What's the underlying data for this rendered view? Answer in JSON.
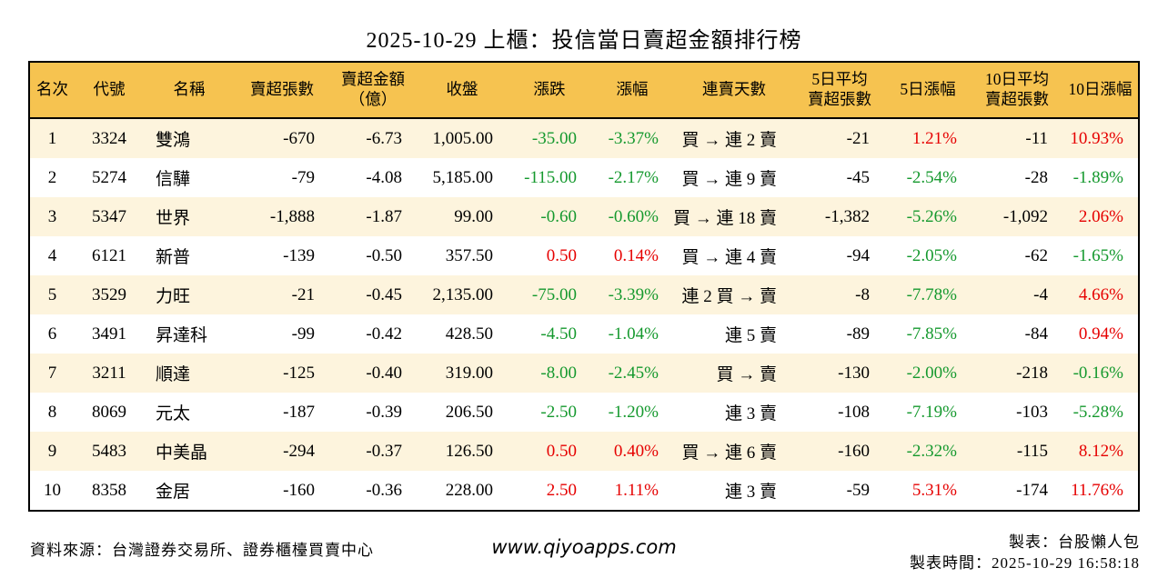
{
  "title": "2025-10-29 上櫃：投信當日賣超金額排行榜",
  "colors": {
    "up_red": "#e60000",
    "down_green": "#15992e",
    "header_bg": "#f6c350",
    "row_alt_bg": "#fdf4dd",
    "border": "#000000"
  },
  "chart_data": {
    "type": "table",
    "title": "2025-10-29 上櫃：投信當日賣超金額排行榜",
    "columns": [
      "名次",
      "代號",
      "名稱",
      "賣超張數",
      "賣超金額（億）",
      "收盤",
      "漲跌",
      "漲幅",
      "連賣天數",
      "5日平均賣超張數",
      "5日漲幅",
      "10日平均賣超張數",
      "10日漲幅"
    ],
    "column_headers_display": [
      "名次",
      "代號",
      "名稱",
      "賣超張數",
      "賣超金額\n（億）",
      "收盤",
      "漲跌",
      "漲幅",
      "連賣天數",
      "5日平均\n賣超張數",
      "5日漲幅",
      "10日平均\n賣超張數",
      "10日漲幅"
    ],
    "column_keys": [
      "rank",
      "code",
      "name",
      "net-sell-volume",
      "net-sell-amount",
      "close",
      "change",
      "change-pct",
      "streak",
      "avg5-volume",
      "pct5",
      "avg10-volume",
      "pct10"
    ],
    "sign_colored_columns": [
      6,
      7,
      10,
      12
    ],
    "color_convention": {
      "positive": "red",
      "negative": "green"
    },
    "rows": [
      [
        "1",
        "3324",
        "雙鴻",
        "-670",
        "-6.73",
        "1,005.00",
        "-35.00",
        "-3.37%",
        "買 → 連 2 賣",
        "-21",
        "1.21%",
        "-11",
        "10.93%"
      ],
      [
        "2",
        "5274",
        "信驊",
        "-79",
        "-4.08",
        "5,185.00",
        "-115.00",
        "-2.17%",
        "買 → 連 9 賣",
        "-45",
        "-2.54%",
        "-28",
        "-1.89%"
      ],
      [
        "3",
        "5347",
        "世界",
        "-1,888",
        "-1.87",
        "99.00",
        "-0.60",
        "-0.60%",
        "買 → 連 18 賣",
        "-1,382",
        "-5.26%",
        "-1,092",
        "2.06%"
      ],
      [
        "4",
        "6121",
        "新普",
        "-139",
        "-0.50",
        "357.50",
        "0.50",
        "0.14%",
        "買 → 連 4 賣",
        "-94",
        "-2.05%",
        "-62",
        "-1.65%"
      ],
      [
        "5",
        "3529",
        "力旺",
        "-21",
        "-0.45",
        "2,135.00",
        "-75.00",
        "-3.39%",
        "連 2 買 → 賣",
        "-8",
        "-7.78%",
        "-4",
        "4.66%"
      ],
      [
        "6",
        "3491",
        "昇達科",
        "-99",
        "-0.42",
        "428.50",
        "-4.50",
        "-1.04%",
        "連 5 賣",
        "-89",
        "-7.85%",
        "-84",
        "0.94%"
      ],
      [
        "7",
        "3211",
        "順達",
        "-125",
        "-0.40",
        "319.00",
        "-8.00",
        "-2.45%",
        "買 → 賣",
        "-130",
        "-2.00%",
        "-218",
        "-0.16%"
      ],
      [
        "8",
        "8069",
        "元太",
        "-187",
        "-0.39",
        "206.50",
        "-2.50",
        "-1.20%",
        "連 3 賣",
        "-108",
        "-7.19%",
        "-103",
        "-5.28%"
      ],
      [
        "9",
        "5483",
        "中美晶",
        "-294",
        "-0.37",
        "126.50",
        "0.50",
        "0.40%",
        "買 → 連 6 賣",
        "-160",
        "-2.32%",
        "-115",
        "8.12%"
      ],
      [
        "10",
        "8358",
        "金居",
        "-160",
        "-0.36",
        "228.00",
        "2.50",
        "1.11%",
        "連 3 賣",
        "-59",
        "5.31%",
        "-174",
        "11.76%"
      ]
    ]
  },
  "footer": {
    "source": "資料來源：台灣證券交易所、證券櫃檯買賣中心",
    "website": "www.qiyoapps.com",
    "maker": "製表：台股懶人包",
    "made_time": "製表時間：2025-10-29 16:58:18"
  }
}
